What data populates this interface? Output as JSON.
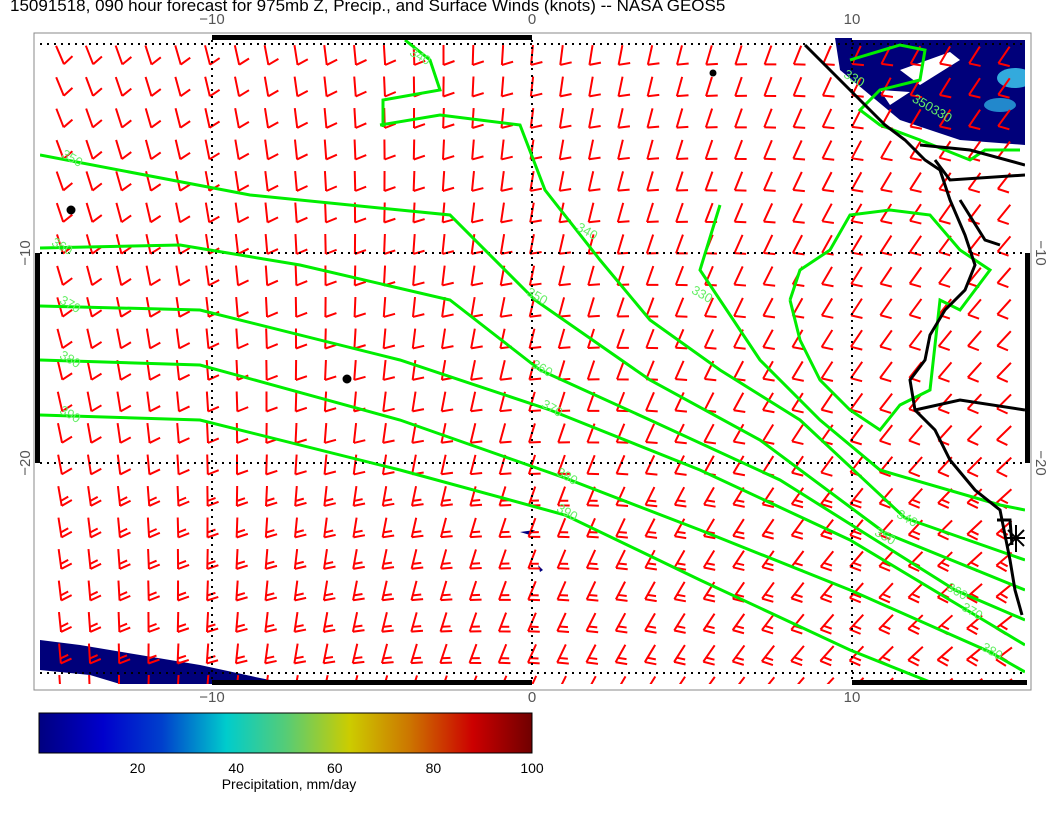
{
  "title": "15091518, 090 hour forecast for 975mb Z, Precip., and Surface Winds (knots) -- NASA GEOS5",
  "map": {
    "lon_ticks_top": [
      "−10",
      "0",
      "10"
    ],
    "lon_ticks_bottom": [
      "−10",
      "0",
      "10"
    ],
    "lat_ticks_left": [
      "−10",
      "−20"
    ],
    "lat_ticks_right": [
      "−10",
      "−20"
    ],
    "contour_color": "#00ee00",
    "wind_barb_color": "#ff0000",
    "coastline_color": "#000000",
    "precip_fill_color": "#00007a",
    "contour_labels": {
      "left": [
        "350",
        "360",
        "370",
        "380",
        "390"
      ],
      "middle": [
        "340",
        "350",
        "360",
        "370",
        "380",
        "390",
        "330"
      ],
      "lower_right": [
        "340",
        "350",
        "360",
        "370",
        "380"
      ],
      "top": [
        "340"
      ],
      "top_right": [
        "330",
        "350330"
      ]
    }
  },
  "colorbar": {
    "label": "Precipitation, mm/day",
    "ticks": [
      "20",
      "40",
      "60",
      "80",
      "100"
    ],
    "range": [
      0,
      100
    ],
    "colors": [
      "#000080",
      "#0000cc",
      "#0050cc",
      "#00cccc",
      "#66cc66",
      "#cccc00",
      "#cc7700",
      "#cc0000",
      "#700000"
    ]
  }
}
